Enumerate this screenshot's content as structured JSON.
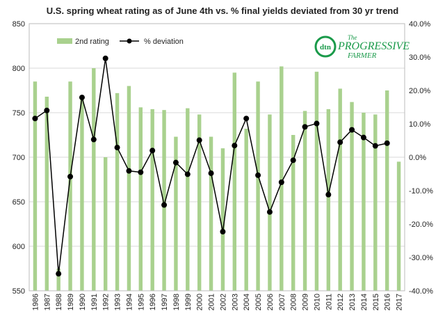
{
  "chart_data": {
    "type": "bar",
    "title": "U.S. spring wheat rating as of June 4th vs. % final yields deviated from 30 yr trend",
    "categories": [
      "1986",
      "1987",
      "1988",
      "1989",
      "1990",
      "1991",
      "1992",
      "1993",
      "1994",
      "1995",
      "1996",
      "1997",
      "1998",
      "1999",
      "2000",
      "2001",
      "2002",
      "2003",
      "2004",
      "2005",
      "2006",
      "2007",
      "2008",
      "2009",
      "2010",
      "2011",
      "2012",
      "2013",
      "2014",
      "2015",
      "2016",
      "2017"
    ],
    "y_left": {
      "min": 550,
      "max": 850,
      "step": 50,
      "ticks": [
        "550",
        "600",
        "650",
        "700",
        "750",
        "800",
        "850"
      ]
    },
    "y_right": {
      "min": -40,
      "max": 40,
      "step": 10,
      "ticks": [
        "-40.0%",
        "-30.0%",
        "-20.0%",
        "-10.0%",
        "0.0%",
        "10.0%",
        "20.0%",
        "30.0%",
        "40.0%"
      ]
    },
    "grid": true,
    "legend_position": "top-left",
    "series": [
      {
        "name": "2nd rating",
        "type": "bar",
        "axis": "left",
        "color": "#a9d18e",
        "values": [
          785,
          768,
          575,
          785,
          765,
          800,
          700,
          772,
          780,
          756,
          754,
          753,
          723,
          755,
          748,
          723,
          710,
          795,
          732,
          785,
          748,
          802,
          725,
          752,
          796,
          754,
          777,
          762,
          750,
          748,
          775,
          695
        ]
      },
      {
        "name": "% deviation",
        "type": "line",
        "axis": "right",
        "color": "#000000",
        "values": [
          11.6,
          14.0,
          -34.9,
          -5.8,
          17.9,
          5.3,
          29.6,
          2.9,
          -4.1,
          -4.5,
          2.0,
          -14.3,
          -1.6,
          -5.1,
          5.1,
          -4.8,
          -22.3,
          3.5,
          11.6,
          -5.4,
          -16.4,
          -7.5,
          -0.9,
          9.1,
          10.1,
          -11.2,
          4.5,
          8.2,
          5.9,
          3.4,
          4.2,
          null
        ]
      }
    ]
  },
  "logo": {
    "brand": "dtn",
    "line1": "The",
    "line2": "PROGRESSIVE",
    "line3": "FARMER",
    "color": "#1a9a4a"
  }
}
